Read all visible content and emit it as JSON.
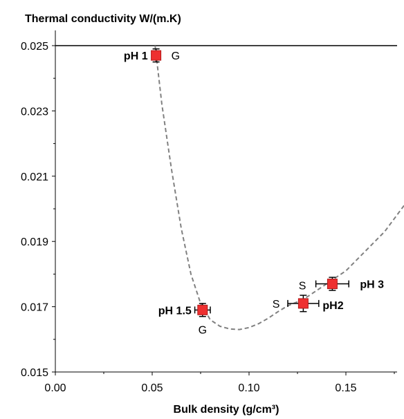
{
  "chart_data": {
    "type": "scatter",
    "ylabel": "Thermal conductivity W/(m.K)",
    "xlabel": "Bulk density (g/cm³)",
    "xlim": [
      0.0,
      0.18
    ],
    "ylim": [
      0.015,
      0.0255
    ],
    "x_ticks": [
      "0.00",
      "0.05",
      "0.10",
      "0.15"
    ],
    "y_ticks": [
      "0.015",
      "0.017",
      "0.019",
      "0.021",
      "0.023",
      "0.025"
    ],
    "reference_line_y": 0.025,
    "points": [
      {
        "label": "pH 1",
        "x": 0.052,
        "y": 0.0247,
        "xerr": 0.0015,
        "yerr": 0.0002,
        "morph": "G"
      },
      {
        "label": "pH 1.5",
        "x": 0.076,
        "y": 0.0169,
        "xerr": 0.004,
        "yerr": 0.0002,
        "morph": "G"
      },
      {
        "label": "pH2",
        "x": 0.128,
        "y": 0.0171,
        "xerr": 0.008,
        "yerr": 0.00025,
        "morph": "S"
      },
      {
        "label": "pH 3",
        "x": 0.143,
        "y": 0.0177,
        "xerr": 0.0085,
        "yerr": 0.0002,
        "morph": "S"
      }
    ],
    "fit_curve": {
      "style": "dashed",
      "x": [
        0.0515,
        0.055,
        0.06,
        0.065,
        0.07,
        0.075,
        0.08,
        0.085,
        0.09,
        0.095,
        0.1,
        0.105,
        0.11,
        0.115,
        0.12,
        0.125,
        0.13,
        0.135,
        0.14,
        0.145,
        0.15,
        0.155,
        0.16,
        0.165,
        0.17,
        0.175,
        0.18
      ],
      "y": [
        0.025,
        0.0232,
        0.0212,
        0.0194,
        0.018,
        0.0171,
        0.0166,
        0.0164,
        0.01632,
        0.0163,
        0.01636,
        0.01648,
        0.01665,
        0.01685,
        0.01703,
        0.01715,
        0.0173,
        0.0175,
        0.0177,
        0.0179,
        0.0181,
        0.0184,
        0.0187,
        0.019,
        0.0193,
        0.0197,
        0.0201
      ]
    },
    "colors": {
      "marker": "#ee3030",
      "marker_edge": "#b01818",
      "curve": "#808080",
      "axis": "#000000"
    }
  }
}
